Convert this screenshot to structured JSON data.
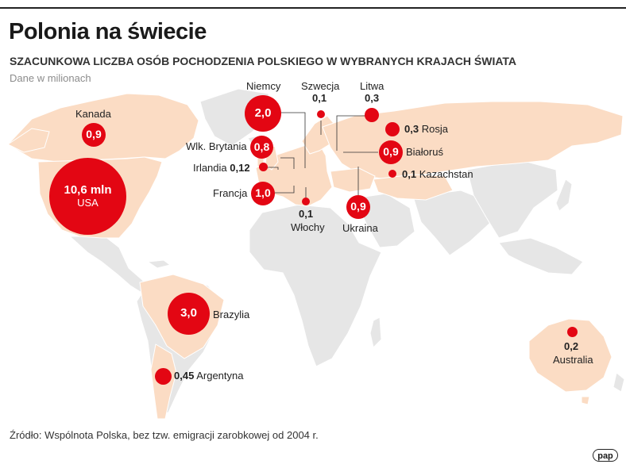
{
  "title": "Polonia na świecie",
  "subtitle": "SZACUNKOWA LICZBA OSÓB POCHODZENIA POLSKIEGO W WYBRANYCH KRAJACH ŚWIATA",
  "unit": "Dane w milionach",
  "source": "Źródło: Wspólnota Polska, bez tzw. emigracji zarobkowej od 2004 r.",
  "logo": "pap",
  "colors": {
    "accent": "#e30613",
    "highlight_land": "#fbdcc4",
    "land": "#e6e6e6"
  },
  "countries": {
    "usa": {
      "name": "USA",
      "value": "10,6 mln"
    },
    "canada": {
      "name": "Kanada",
      "value": "0,9"
    },
    "brazil": {
      "name": "Brazylia",
      "value": "3,0"
    },
    "argentina": {
      "name": "Argentyna",
      "value": "0,45"
    },
    "germany": {
      "name": "Niemcy",
      "value": "2,0"
    },
    "uk": {
      "name": "Wlk. Brytania",
      "value": "0,8"
    },
    "ireland": {
      "name": "Irlandia",
      "value": "0,12"
    },
    "france": {
      "name": "Francja",
      "value": "1,0"
    },
    "italy": {
      "name": "Włochy",
      "value": "0,1"
    },
    "sweden": {
      "name": "Szwecja",
      "value": "0,1"
    },
    "lithuania": {
      "name": "Litwa",
      "value": "0,3"
    },
    "russia": {
      "name": "Rosja",
      "value": "0,3"
    },
    "belarus": {
      "name": "Białoruś",
      "value": "0,9"
    },
    "kazakhstan": {
      "name": "Kazachstan",
      "value": "0,1"
    },
    "ukraine": {
      "name": "Ukraina",
      "value": "0,9"
    },
    "australia": {
      "name": "Australia",
      "value": "0,2"
    }
  }
}
